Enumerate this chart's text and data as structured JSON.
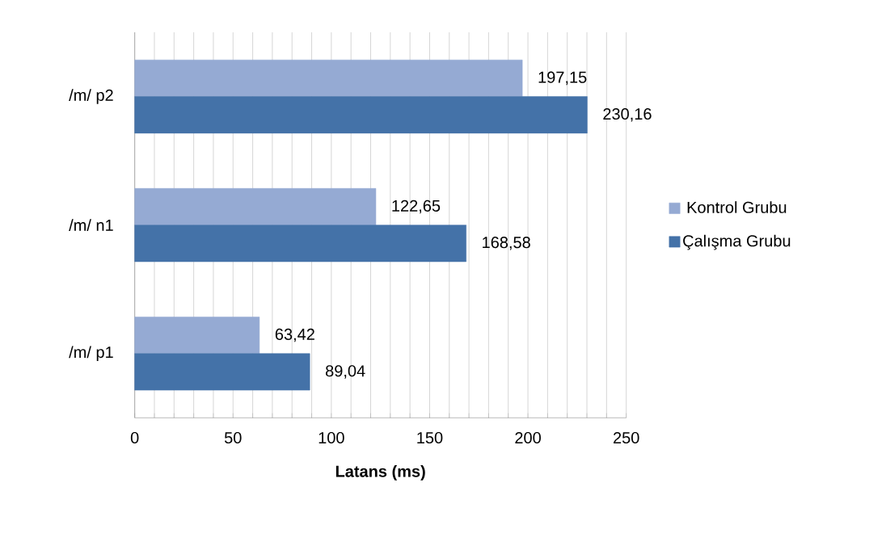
{
  "chart_data": {
    "type": "bar",
    "orientation": "horizontal",
    "xlabel": "Latans (ms)",
    "categories": [
      "/m/ p2",
      "/m/ n1",
      "/m/ p1"
    ],
    "series": [
      {
        "name": "Kontrol Grubu",
        "color": "#95aad3",
        "values": [
          197.15,
          122.65,
          63.42
        ],
        "value_labels": [
          "197,15",
          "122,65",
          "63,42"
        ]
      },
      {
        "name": "Çalışma Grubu",
        "color": "#4472a8",
        "values": [
          230.16,
          168.58,
          89.04
        ],
        "value_labels": [
          "230,16",
          "168,58",
          "89,04"
        ]
      }
    ],
    "xlim": [
      0,
      250
    ],
    "xticks": [
      0,
      {
        "value": 10,
        "label": null
      },
      {
        "value": 20,
        "label": null
      },
      {
        "value": 30,
        "label": null
      },
      {
        "value": 40,
        "label": null
      },
      50,
      {
        "value": 60,
        "label": null
      },
      {
        "value": 70,
        "label": null
      },
      {
        "value": 80,
        "label": null
      },
      {
        "value": 90,
        "label": null
      },
      100,
      {
        "value": 110,
        "label": null
      },
      {
        "value": 120,
        "label": null
      },
      {
        "value": 130,
        "label": null
      },
      {
        "value": 140,
        "label": null
      },
      150,
      {
        "value": 160,
        "label": null
      },
      {
        "value": 170,
        "label": null
      },
      {
        "value": 180,
        "label": null
      },
      {
        "value": 190,
        "label": null
      },
      200,
      {
        "value": 210,
        "label": null
      },
      {
        "value": 220,
        "label": null
      },
      {
        "value": 230,
        "label": null
      },
      {
        "value": 240,
        "label": null
      },
      250
    ],
    "grid": "x",
    "legend": "right"
  }
}
